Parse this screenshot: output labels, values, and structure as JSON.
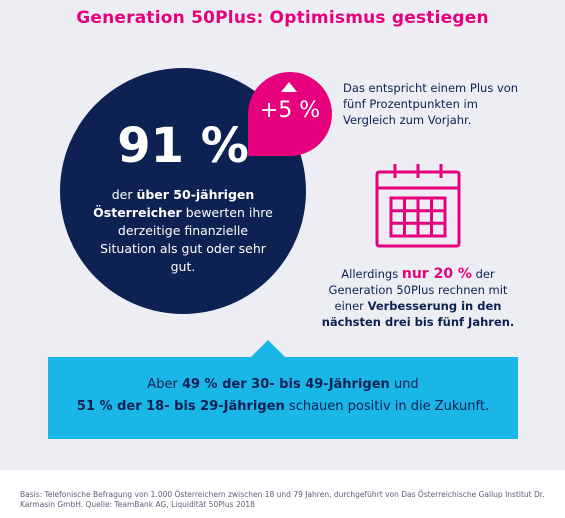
{
  "title": "Generation 50Plus: Optimismus gestiegen",
  "main_stat": {
    "value": "91 %",
    "text_1": "der",
    "text_bold_1": "über 50-jährigen Österreicher",
    "text_2": "bewerten ihre derzeitige finanzielle Situation als gut oder sehr gut."
  },
  "badge": {
    "value": "+5 %",
    "icon": "arrow-up-icon"
  },
  "side_note_top": "Das entspricht einem Plus von fünf Prozentpunkten im Vergleich zum Vorjahr.",
  "calendar_icon": "calendar-icon",
  "side_note_bottom": {
    "text_1": "Allerdings",
    "highlight": "nur 20 %",
    "text_2": "der Generation 50Plus rechnen mit einer",
    "text_bold": "Verbesserung in den nächsten drei bis fünf Jahren."
  },
  "banner": {
    "line1_pre": "Aber",
    "line1_bold": "49 % der 30- bis 49-Jährigen",
    "line1_post": "und",
    "line2_bold": "51 % der 18- bis 29-Jährigen",
    "line2_post": "schauen positiv in die Zukunft."
  },
  "footer": "Basis: Telefonische Befragung von 1.000 Österreichern zwischen 18 und 79 Jahren, durchgeführt von Das Österreichische Gallup Institut Dr. Karmasin GmbH. Quelle: TeamBank AG, Liquidität 50Plus 2018",
  "colors": {
    "magenta": "#e6007e",
    "navy": "#0d2152",
    "cyan": "#1bb6e8",
    "panel": "#eceef4"
  }
}
